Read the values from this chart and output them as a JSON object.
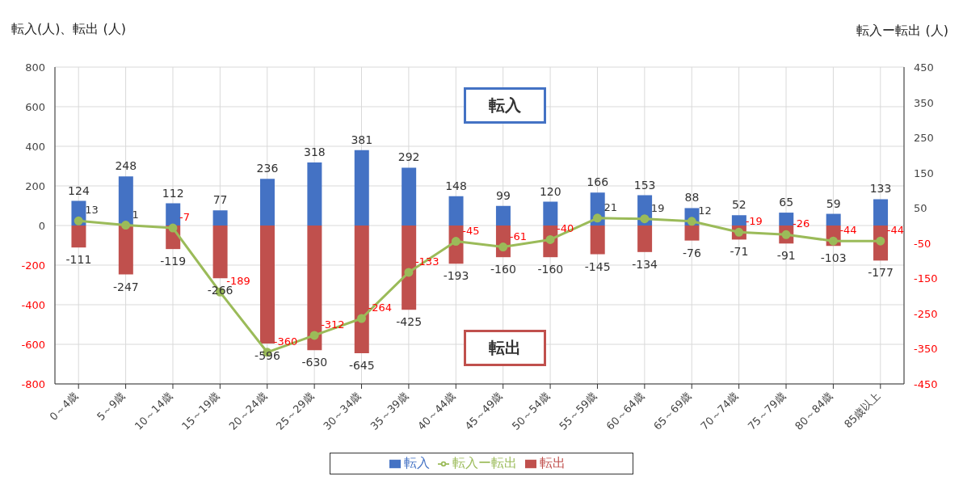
{
  "chart_data": {
    "type": "bar",
    "stacked": true,
    "ylabel": "転入(人)、転出 (人)",
    "y2label": "転入ー転出 (人)",
    "categories": [
      "0～4歳",
      "5～9歳",
      "10～14歳",
      "15～19歳",
      "20～24歳",
      "25～29歳",
      "30～34歳",
      "35～39歳",
      "40～44歳",
      "45～49歳",
      "50～54歳",
      "55～59歳",
      "60～64歳",
      "65～69歳",
      "70～74歳",
      "75～79歳",
      "80～84歳",
      "85歳以上"
    ],
    "series": [
      {
        "name": "転入",
        "type": "bar",
        "color": "#4472c4",
        "values": [
          124,
          248,
          112,
          77,
          236,
          318,
          381,
          292,
          148,
          99,
          120,
          166,
          153,
          88,
          52,
          65,
          59,
          133
        ]
      },
      {
        "name": "転出",
        "type": "bar",
        "color": "#c0504d",
        "values": [
          -111,
          -247,
          -119,
          -266,
          -596,
          -630,
          -645,
          -425,
          -193,
          -160,
          -160,
          -145,
          -134,
          -76,
          -71,
          -91,
          -103,
          -177
        ]
      },
      {
        "name": "転入ー転出",
        "type": "line",
        "axis": "y2",
        "color": "#9bbb59",
        "marker": "circle",
        "values": [
          13,
          1,
          -7,
          -189,
          -360,
          -312,
          -264,
          -133,
          -45,
          -61,
          -40,
          21,
          19,
          12,
          -19,
          -26,
          -44,
          -44
        ]
      }
    ],
    "ylim": [
      -800,
      800
    ],
    "yticks": [
      -800,
      -600,
      -400,
      -200,
      0,
      200,
      400,
      600,
      800
    ],
    "y2lim": [
      -450,
      450
    ],
    "y2ticks": [
      -450,
      -350,
      -250,
      -150,
      -50,
      50,
      150,
      250,
      350,
      450
    ],
    "grid": true,
    "legend": "bottom",
    "data_labels": true,
    "annotations": [
      "転入",
      "転出"
    ]
  }
}
